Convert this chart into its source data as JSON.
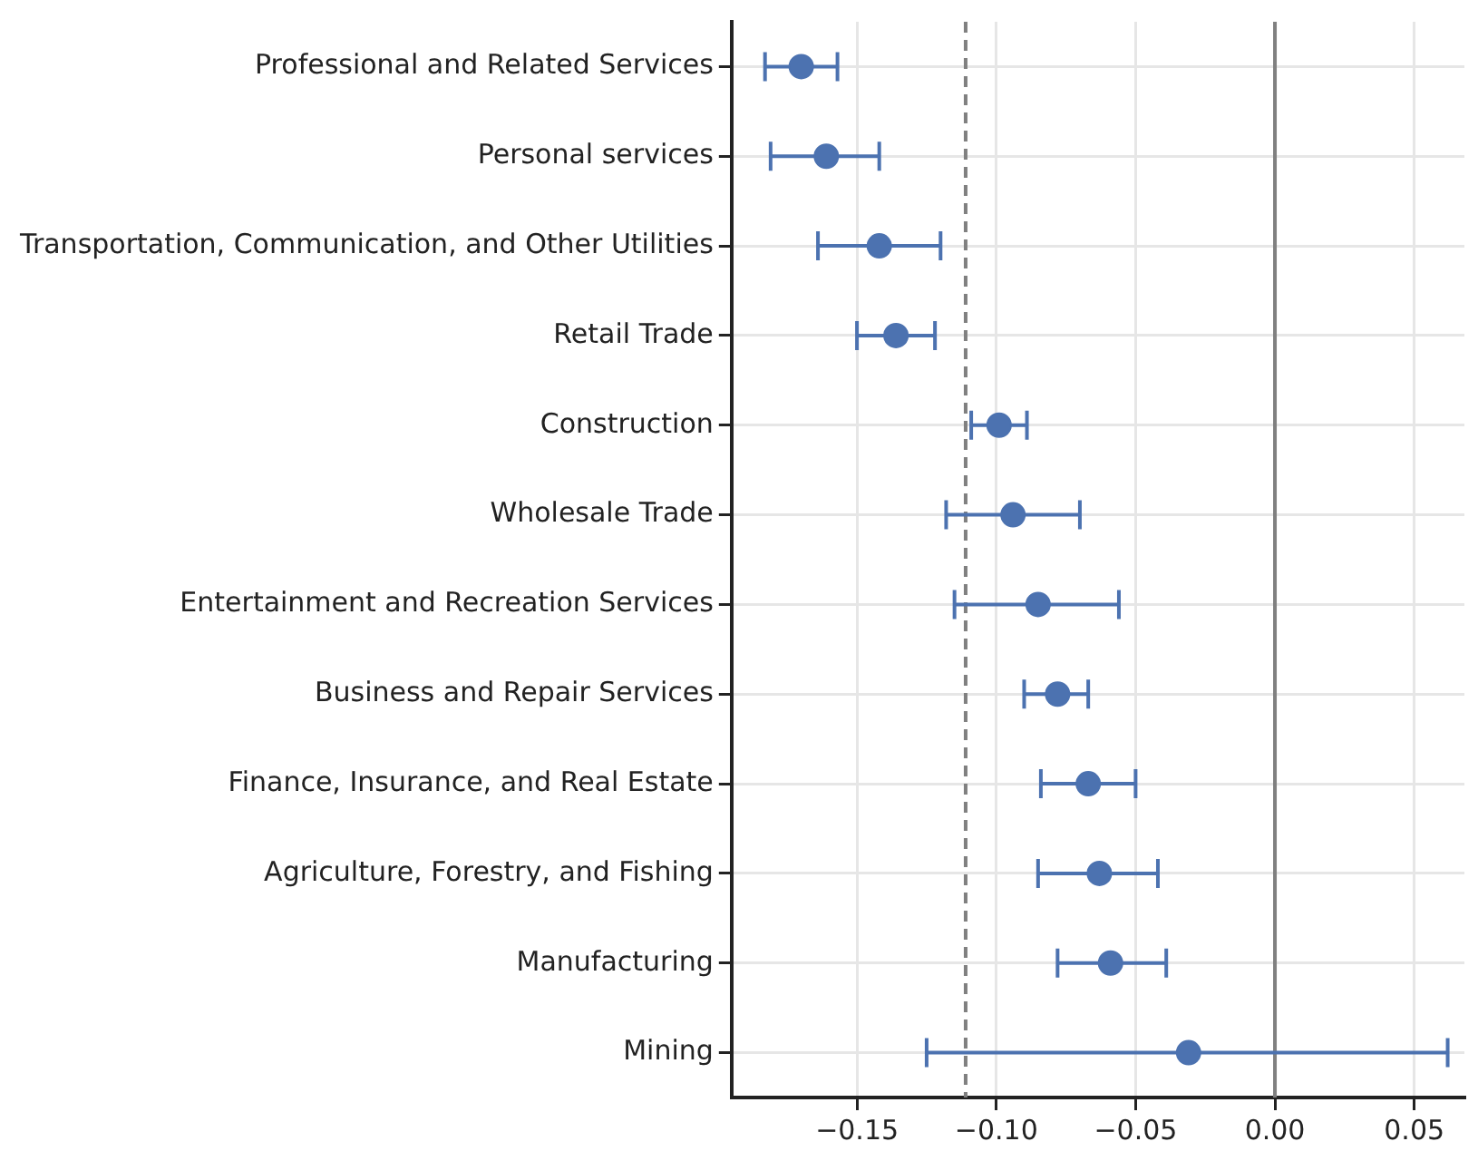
{
  "chart_data": {
    "type": "scatter",
    "orientation": "horizontal",
    "categories": [
      "Professional and Related Services",
      "Personal services",
      "Transportation, Communication, and Other Utilities",
      "Retail Trade",
      "Construction",
      "Wholesale Trade",
      "Entertainment and Recreation Services",
      "Business and Repair Services",
      "Finance, Insurance, and Real Estate",
      "Agriculture, Forestry, and Fishing",
      "Manufacturing",
      "Mining"
    ],
    "values": [
      -0.17,
      -0.161,
      -0.142,
      -0.136,
      -0.099,
      -0.094,
      -0.085,
      -0.078,
      -0.067,
      -0.063,
      -0.059,
      -0.031
    ],
    "errors": [
      [
        -0.183,
        -0.157
      ],
      [
        -0.181,
        -0.142
      ],
      [
        -0.164,
        -0.12
      ],
      [
        -0.15,
        -0.122
      ],
      [
        -0.109,
        -0.089
      ],
      [
        -0.118,
        -0.07
      ],
      [
        -0.115,
        -0.056
      ],
      [
        -0.09,
        -0.067
      ],
      [
        -0.084,
        -0.05
      ],
      [
        -0.085,
        -0.042
      ],
      [
        -0.078,
        -0.039
      ],
      [
        -0.125,
        0.062
      ]
    ],
    "color": "#4c72b0",
    "marker": "circle",
    "grid": true,
    "xlim": [
      -0.195,
      0.068
    ],
    "xticks": [
      {
        "value": -0.15,
        "label": "−0.15"
      },
      {
        "value": -0.1,
        "label": "−0.10"
      },
      {
        "value": -0.05,
        "label": "−0.05"
      },
      {
        "value": 0,
        "label": "0.00"
      },
      {
        "value": 0.05,
        "label": "0.05"
      }
    ],
    "ref_lines": [
      {
        "axis": "x",
        "value": 0,
        "color": "#808080",
        "line_style": "solid"
      },
      {
        "axis": "x",
        "value": -0.111,
        "color": "#808080",
        "line_style": "dashed"
      }
    ]
  }
}
